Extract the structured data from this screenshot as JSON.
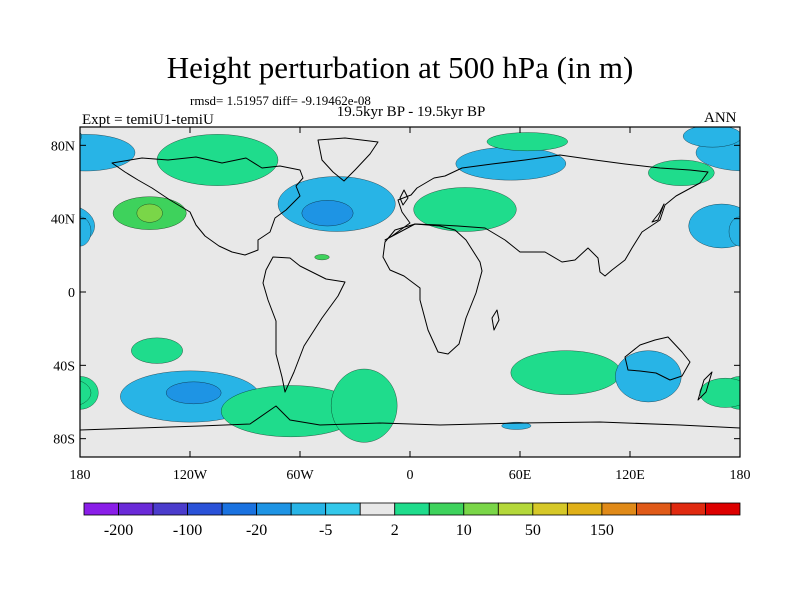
{
  "title": "Height perturbation at 500 hPa (in m)",
  "stats_line": "rmsd= 1.51957  diff= -9.19462e-08",
  "period_line": "19.5kyr BP - 19.5kyr BP",
  "experiment": "Expt = temiU1-temiU",
  "season": "ANN",
  "colors": {
    "background": "#e8e8e8",
    "land_outline": "#000000",
    "palette": [
      "#8a1ee8",
      "#6a2ad8",
      "#4b3ccc",
      "#2a52d8",
      "#1a72e0",
      "#1e94e4",
      "#28b4e6",
      "#33c8ea",
      "#e8e8e8",
      "#1fdc8c",
      "#3ed25c",
      "#7ad648",
      "#b4d83a",
      "#d6c828",
      "#e0b018",
      "#e08a18",
      "#e05a18",
      "#e02a10",
      "#dd0000"
    ]
  },
  "chart_data": {
    "type": "heatmap",
    "projection": "cylindrical-equidistant",
    "x_range": [
      -180,
      180
    ],
    "y_range": [
      -90,
      90
    ],
    "x_tick_values": [
      -180,
      -120,
      -60,
      0,
      60,
      120,
      180
    ],
    "x_tick_labels": [
      "180",
      "120W",
      "60W",
      "0",
      "60E",
      "120E",
      "180"
    ],
    "y_tick_values": [
      80,
      40,
      0,
      -40,
      -80
    ],
    "y_tick_labels": [
      "80N",
      "40N",
      "0",
      "40S",
      "80S"
    ],
    "colorbar_labels": [
      "-200",
      "-100",
      "-20",
      "-5",
      "2",
      "10",
      "50",
      "150"
    ],
    "colorbar_label_after_box": [
      1,
      3,
      5,
      7,
      9,
      11,
      13,
      15
    ],
    "anomalies": [
      {
        "lon": -177,
        "lat": 76,
        "rlon": 27,
        "rlat": 10,
        "level": 6
      },
      {
        "lon": -142,
        "lat": 43,
        "rlon": 20,
        "rlat": 9,
        "level": 10
      },
      {
        "lon": -142,
        "lat": 43,
        "rlon": 7,
        "rlat": 5,
        "level": 11
      },
      {
        "lon": -105,
        "lat": 72,
        "rlon": 33,
        "rlat": 14,
        "level": 9
      },
      {
        "lon": -40,
        "lat": 48,
        "rlon": 32,
        "rlat": 15,
        "level": 6
      },
      {
        "lon": -45,
        "lat": 43,
        "rlon": 14,
        "rlat": 7,
        "level": 5
      },
      {
        "lon": -48,
        "lat": 19,
        "rlon": 4,
        "rlat": 1.5,
        "level": 10
      },
      {
        "lon": 30,
        "lat": 45,
        "rlon": 28,
        "rlat": 12,
        "level": 9
      },
      {
        "lon": 55,
        "lat": 70,
        "rlon": 30,
        "rlat": 9,
        "level": 6
      },
      {
        "lon": 64,
        "lat": 82,
        "rlon": 22,
        "rlat": 5,
        "level": 9
      },
      {
        "lon": 148,
        "lat": 65,
        "rlon": 18,
        "rlat": 7,
        "level": 9
      },
      {
        "lon": 165,
        "lat": 85,
        "rlon": 16,
        "rlat": 6,
        "level": 6
      },
      {
        "lon": 170,
        "lat": 36,
        "rlon": 18,
        "rlat": 12,
        "level": 6
      },
      {
        "lon": -180,
        "lat": 33,
        "rlon": 6,
        "rlat": 8,
        "level": 6
      },
      {
        "lon": -138,
        "lat": -32,
        "rlon": 14,
        "rlat": 7,
        "level": 9
      },
      {
        "lon": -120,
        "lat": -57,
        "rlon": 38,
        "rlat": 14,
        "level": 6
      },
      {
        "lon": -118,
        "lat": -55,
        "rlon": 15,
        "rlat": 6,
        "level": 5
      },
      {
        "lon": -180,
        "lat": -55,
        "rlon": 10,
        "rlat": 9,
        "level": 9
      },
      {
        "lon": -65,
        "lat": -65,
        "rlon": 38,
        "rlat": 14,
        "level": 9
      },
      {
        "lon": -25,
        "lat": -62,
        "rlon": 18,
        "rlat": 20,
        "level": 9
      },
      {
        "lon": 85,
        "lat": -44,
        "rlon": 30,
        "rlat": 12,
        "level": 9
      },
      {
        "lon": 130,
        "lat": -46,
        "rlon": 18,
        "rlat": 14,
        "level": 6
      },
      {
        "lon": 58,
        "lat": -73,
        "rlon": 8,
        "rlat": 2,
        "level": 6
      },
      {
        "lon": 172,
        "lat": -55,
        "rlon": 14,
        "rlat": 8,
        "level": 9
      }
    ]
  }
}
